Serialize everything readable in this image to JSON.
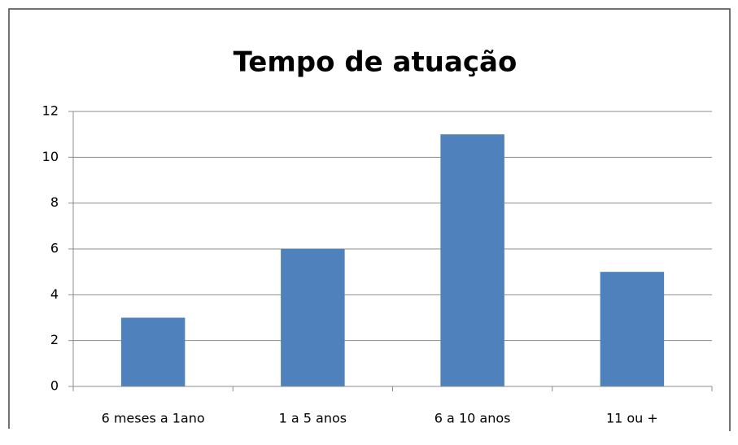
{
  "chart_data": {
    "type": "bar",
    "title": "Tempo de atuação",
    "categories": [
      "6 meses a 1ano",
      "1 a 5 anos",
      "6 a 10 anos",
      "11 ou +"
    ],
    "values": [
      3,
      6,
      11,
      5
    ],
    "color": "#4f81bd",
    "ylim": [
      0,
      12
    ],
    "yticks": [
      0,
      2,
      4,
      6,
      8,
      10,
      12
    ],
    "grid": true
  }
}
